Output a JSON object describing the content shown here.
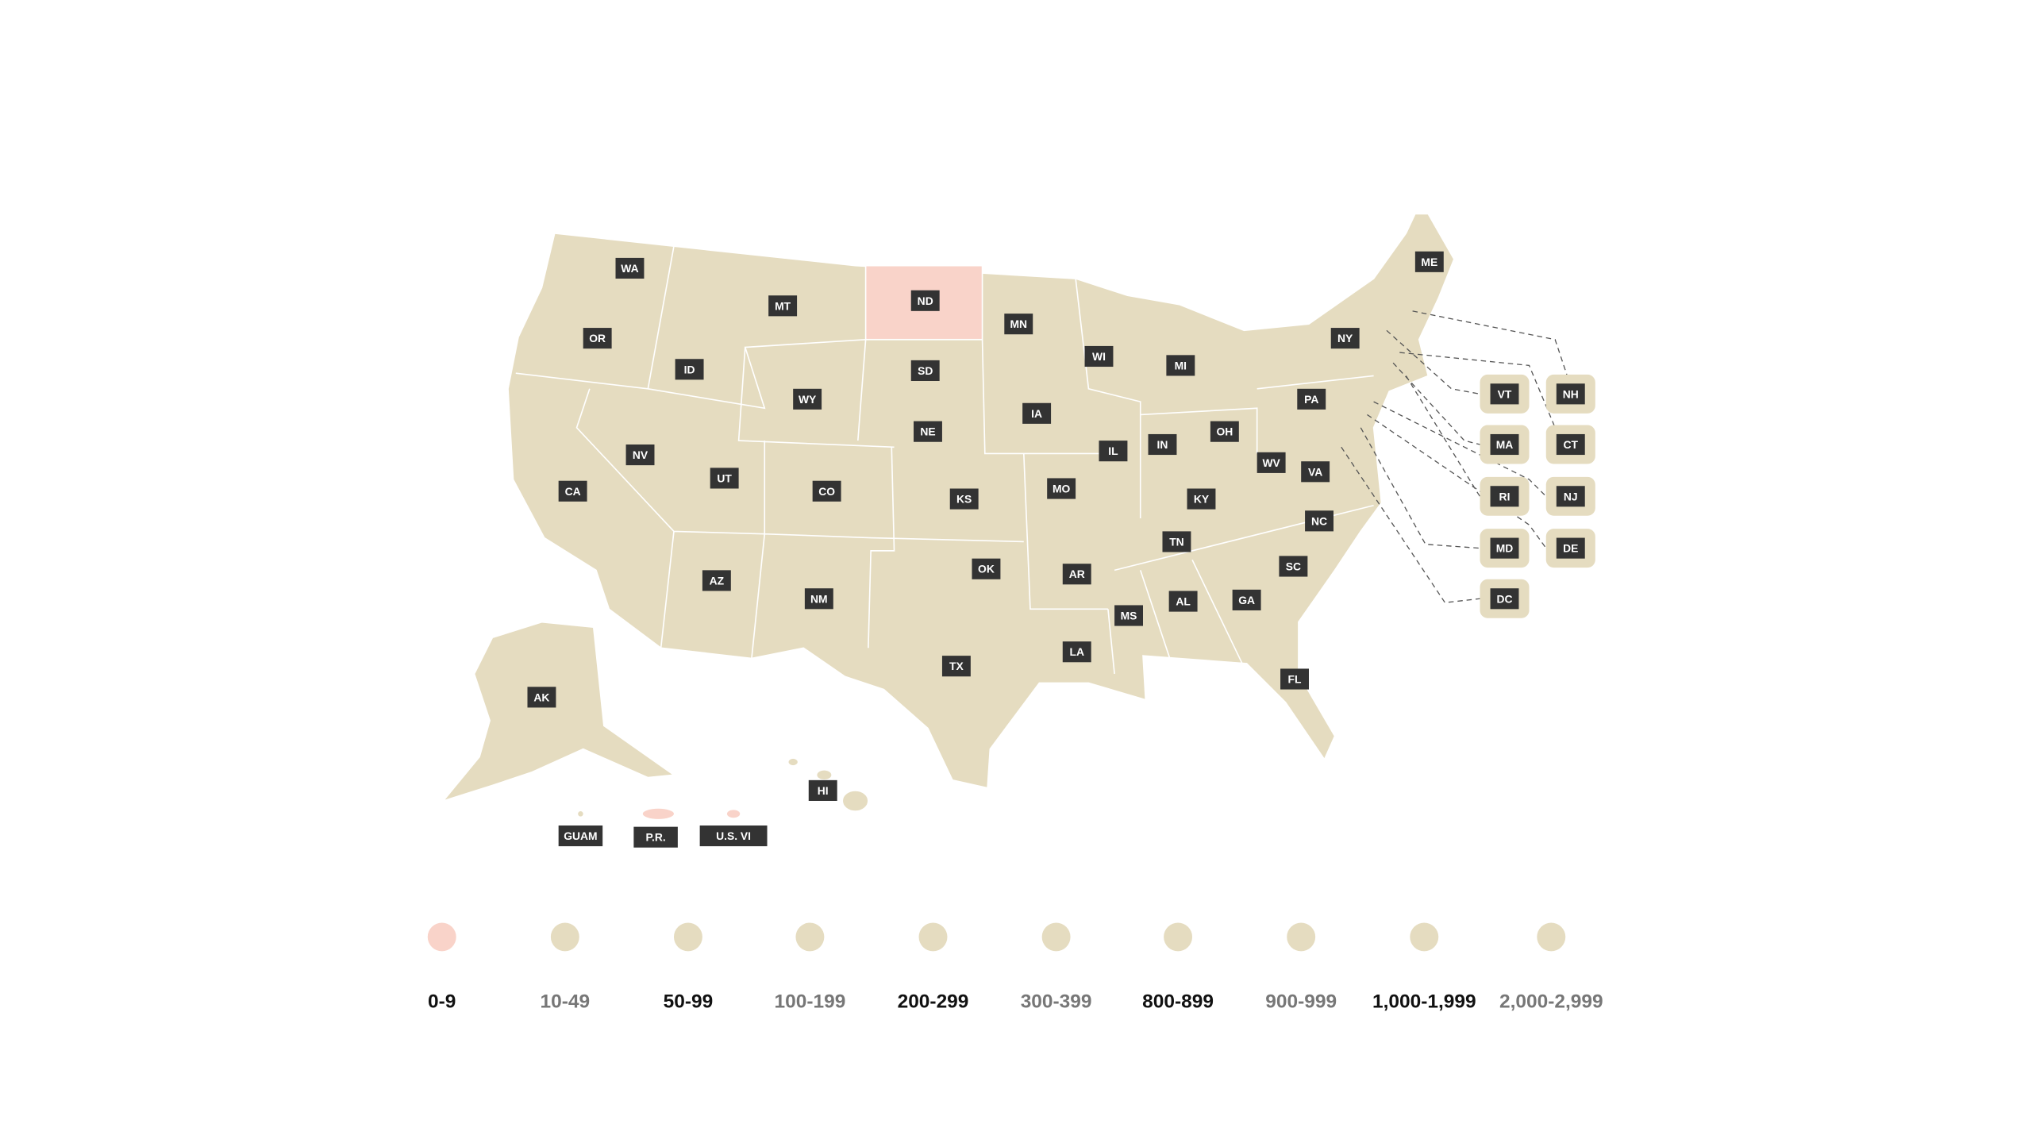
{
  "states": [
    {
      "label": "WA"
    },
    {
      "label": "OR"
    },
    {
      "label": "ID"
    },
    {
      "label": "MT"
    },
    {
      "label": "ND"
    },
    {
      "label": "SD"
    },
    {
      "label": "WY"
    },
    {
      "label": "NE"
    },
    {
      "label": "MN"
    },
    {
      "label": "WI"
    },
    {
      "label": "MI"
    },
    {
      "label": "IA"
    },
    {
      "label": "IL"
    },
    {
      "label": "IN"
    },
    {
      "label": "OH"
    },
    {
      "label": "PA"
    },
    {
      "label": "NY"
    },
    {
      "label": "ME"
    },
    {
      "label": "NV"
    },
    {
      "label": "UT"
    },
    {
      "label": "CO"
    },
    {
      "label": "KS"
    },
    {
      "label": "MO"
    },
    {
      "label": "KY"
    },
    {
      "label": "WV"
    },
    {
      "label": "VA"
    },
    {
      "label": "CA"
    },
    {
      "label": "AZ"
    },
    {
      "label": "NM"
    },
    {
      "label": "OK"
    },
    {
      "label": "AR"
    },
    {
      "label": "TN"
    },
    {
      "label": "NC"
    },
    {
      "label": "SC"
    },
    {
      "label": "MS"
    },
    {
      "label": "AL"
    },
    {
      "label": "GA"
    },
    {
      "label": "LA"
    },
    {
      "label": "TX"
    },
    {
      "label": "FL"
    },
    {
      "label": "AK"
    },
    {
      "label": "HI"
    },
    {
      "label": "GUAM"
    },
    {
      "label": "P.R."
    },
    {
      "label": "U.S. VI"
    }
  ],
  "callouts": [
    {
      "label": "VT"
    },
    {
      "label": "NH"
    },
    {
      "label": "MA"
    },
    {
      "label": "CT"
    },
    {
      "label": "RI"
    },
    {
      "label": "NJ"
    },
    {
      "label": "MD"
    },
    {
      "label": "DE"
    },
    {
      "label": "DC"
    }
  ],
  "legend": [
    {
      "label": "0-9",
      "color": "#f9d3c9"
    },
    {
      "label": "10-49",
      "color": "#e5dcc0"
    },
    {
      "label": "50-99",
      "color": "#e5dcc0"
    },
    {
      "label": "100-199",
      "color": "#e5dcc0"
    },
    {
      "label": "200-299",
      "color": "#e5dcc0"
    },
    {
      "label": "300-399",
      "color": "#e5dcc0"
    },
    {
      "label": "800-899",
      "color": "#e5dcc0"
    },
    {
      "label": "900-999",
      "color": "#e5dcc0"
    },
    {
      "label": "1,000-1,999",
      "color": "#e5dcc0"
    },
    {
      "label": "2,000-2,999",
      "color": "#e5dcc0"
    }
  ]
}
